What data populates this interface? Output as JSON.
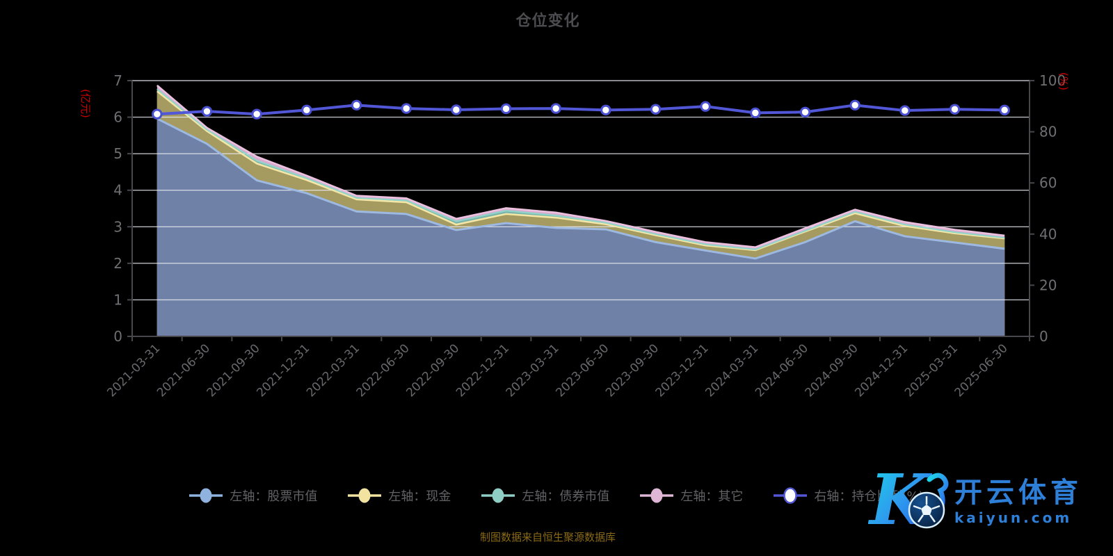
{
  "title": "仓位变化",
  "footer": {
    "note": "制图数据来自恒生聚源数据库"
  },
  "watermark": {
    "letter": "K",
    "brand": "开云体育",
    "domain": "kaiyun.com"
  },
  "axes": {
    "left_name": "(亿元)",
    "right_name": "(%)",
    "left_ticks": [
      0,
      1,
      2,
      3,
      4,
      5,
      6,
      7
    ],
    "right_ticks": [
      0,
      20,
      40,
      60,
      80,
      100
    ],
    "name_color": "#CC0000"
  },
  "legend": {
    "items": [
      {
        "key": "stock",
        "label": "左轴：股票市值",
        "color": "#8FB3DE",
        "hollow": false
      },
      {
        "key": "cash",
        "label": "左轴：现金",
        "color": "#F2E3A1",
        "hollow": false
      },
      {
        "key": "bond",
        "label": "左轴：债券市值",
        "color": "#8FCEC5",
        "hollow": false
      },
      {
        "key": "other",
        "label": "左轴：其它",
        "color": "#E0B6D6",
        "hollow": false
      },
      {
        "key": "ratio",
        "label": "右轴：持仓比例(%)",
        "color": "#5157D6",
        "hollow": true
      }
    ]
  },
  "chart_data": {
    "type": "area",
    "title": "仓位变化",
    "xlabel": "",
    "left_ylabel": "(亿元)",
    "right_ylabel": "(%)",
    "left_ylim": [
      0,
      7
    ],
    "right_ylim": [
      0,
      100
    ],
    "grid": true,
    "legend_position": "bottom",
    "categories": [
      "2021-03-31",
      "2021-06-30",
      "2021-09-30",
      "2021-12-31",
      "2022-03-31",
      "2022-06-30",
      "2022-09-30",
      "2022-12-31",
      "2023-03-31",
      "2023-06-30",
      "2023-09-30",
      "2023-12-31",
      "2024-03-31",
      "2024-06-30",
      "2024-09-30",
      "2024-12-31",
      "2025-03-31",
      "2025-06-30"
    ],
    "series": [
      {
        "name": "左轴：股票市值",
        "axis": "left",
        "kind": "stacked-area",
        "fill": "#6F81A7",
        "edge": "#9DB9E2",
        "values": [
          5.96,
          5.27,
          4.27,
          3.92,
          3.42,
          3.35,
          2.91,
          3.1,
          2.97,
          2.93,
          2.58,
          2.35,
          2.13,
          2.58,
          3.15,
          2.74,
          2.57,
          2.4
        ]
      },
      {
        "name": "左轴：现金",
        "axis": "left",
        "kind": "stacked-area",
        "fill": "#A59B61",
        "edge": "#F3E6A6",
        "values": [
          0.75,
          0.35,
          0.46,
          0.36,
          0.33,
          0.32,
          0.15,
          0.25,
          0.28,
          0.14,
          0.19,
          0.14,
          0.23,
          0.29,
          0.22,
          0.28,
          0.25,
          0.28
        ]
      },
      {
        "name": "左轴：债券市值",
        "axis": "left",
        "kind": "stacked-area",
        "fill": "#7AB5AB",
        "edge": "#92D4CA",
        "values": [
          0.06,
          0.04,
          0.08,
          0.05,
          0.04,
          0.05,
          0.09,
          0.09,
          0.06,
          0.04,
          0.03,
          0.03,
          0.02,
          0.02,
          0.04,
          0.04,
          0.03,
          0.02
        ]
      },
      {
        "name": "左轴：其它",
        "axis": "left",
        "kind": "stacked-area",
        "fill": "#D9AACE",
        "edge": "#ECC1DF",
        "values": [
          0.1,
          0.05,
          0.11,
          0.07,
          0.06,
          0.06,
          0.07,
          0.07,
          0.08,
          0.05,
          0.06,
          0.06,
          0.06,
          0.07,
          0.06,
          0.07,
          0.07,
          0.06
        ]
      },
      {
        "name": "右轴：持仓比例(%)",
        "axis": "right",
        "kind": "line",
        "color": "#5157D6",
        "marker": "circle-white",
        "values": [
          86.9,
          88.0,
          86.9,
          88.5,
          90.4,
          89.1,
          88.6,
          89.0,
          89.1,
          88.5,
          88.8,
          89.9,
          87.4,
          87.7,
          90.4,
          88.3,
          88.8,
          88.5
        ]
      }
    ]
  },
  "colors": {
    "background": "#000000",
    "grid": "#E8EAF0",
    "axis": "#47474C",
    "tick_text": "#6F6F73",
    "title_text": "#4C4C50",
    "legend_text": "#626266",
    "footer_text": "#8A6A15",
    "watermark_blue": "#2E7FD8"
  }
}
